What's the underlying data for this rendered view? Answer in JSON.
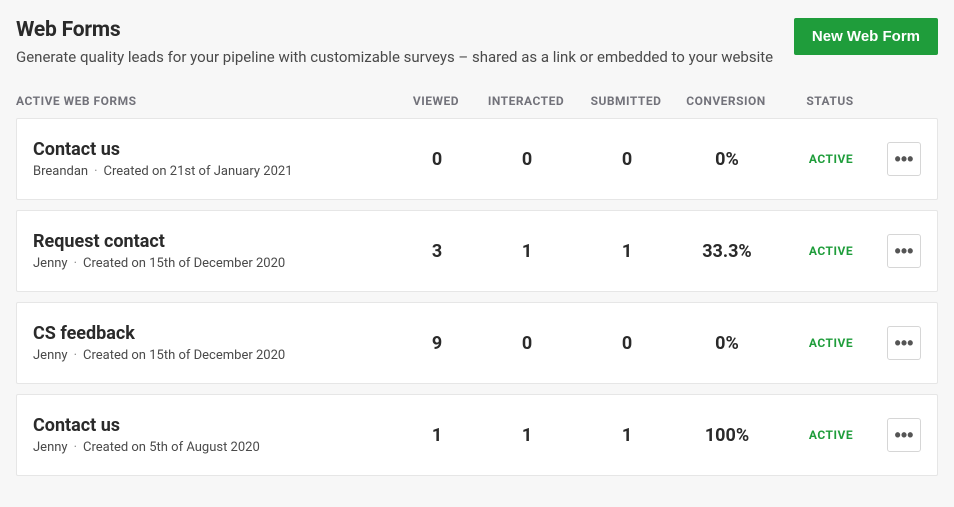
{
  "header": {
    "title": "Web Forms",
    "subtitle": "Generate quality leads for your pipeline with customizable surveys – shared as a link or embedded to your website",
    "new_button": "New Web Form"
  },
  "columns": {
    "name": "ACTIVE WEB FORMS",
    "viewed": "VIEWED",
    "interacted": "INTERACTED",
    "submitted": "SUBMITTED",
    "conversion": "CONVERSION",
    "status": "STATUS"
  },
  "rows": [
    {
      "title": "Contact us",
      "author": "Breandan",
      "created": "Created on 21st of January 2021",
      "viewed": "0",
      "interacted": "0",
      "submitted": "0",
      "conversion": "0%",
      "status": "ACTIVE"
    },
    {
      "title": "Request contact",
      "author": "Jenny",
      "created": "Created on 15th of December 2020",
      "viewed": "3",
      "interacted": "1",
      "submitted": "1",
      "conversion": "33.3%",
      "status": "ACTIVE"
    },
    {
      "title": "CS feedback",
      "author": "Jenny",
      "created": "Created on 15th of December 2020",
      "viewed": "9",
      "interacted": "0",
      "submitted": "0",
      "conversion": "0%",
      "status": "ACTIVE"
    },
    {
      "title": "Contact us",
      "author": "Jenny",
      "created": "Created on 5th of August 2020",
      "viewed": "1",
      "interacted": "1",
      "submitted": "1",
      "conversion": "100%",
      "status": "ACTIVE"
    }
  ],
  "styling": {
    "page_bg": "#f7f7f7",
    "card_bg": "#ffffff",
    "card_border": "#e6e6e6",
    "text_primary": "#2a2a2a",
    "text_secondary": "#4a4a4a",
    "text_muted": "#72727a",
    "accent_green": "#1f9d3b",
    "button_border": "#d6d6d6",
    "title_fontsize": 21,
    "subtitle_fontsize": 15,
    "header_fontsize": 12,
    "form_title_fontsize": 18,
    "form_meta_fontsize": 13,
    "metric_fontsize": 18,
    "status_fontsize": 12
  }
}
